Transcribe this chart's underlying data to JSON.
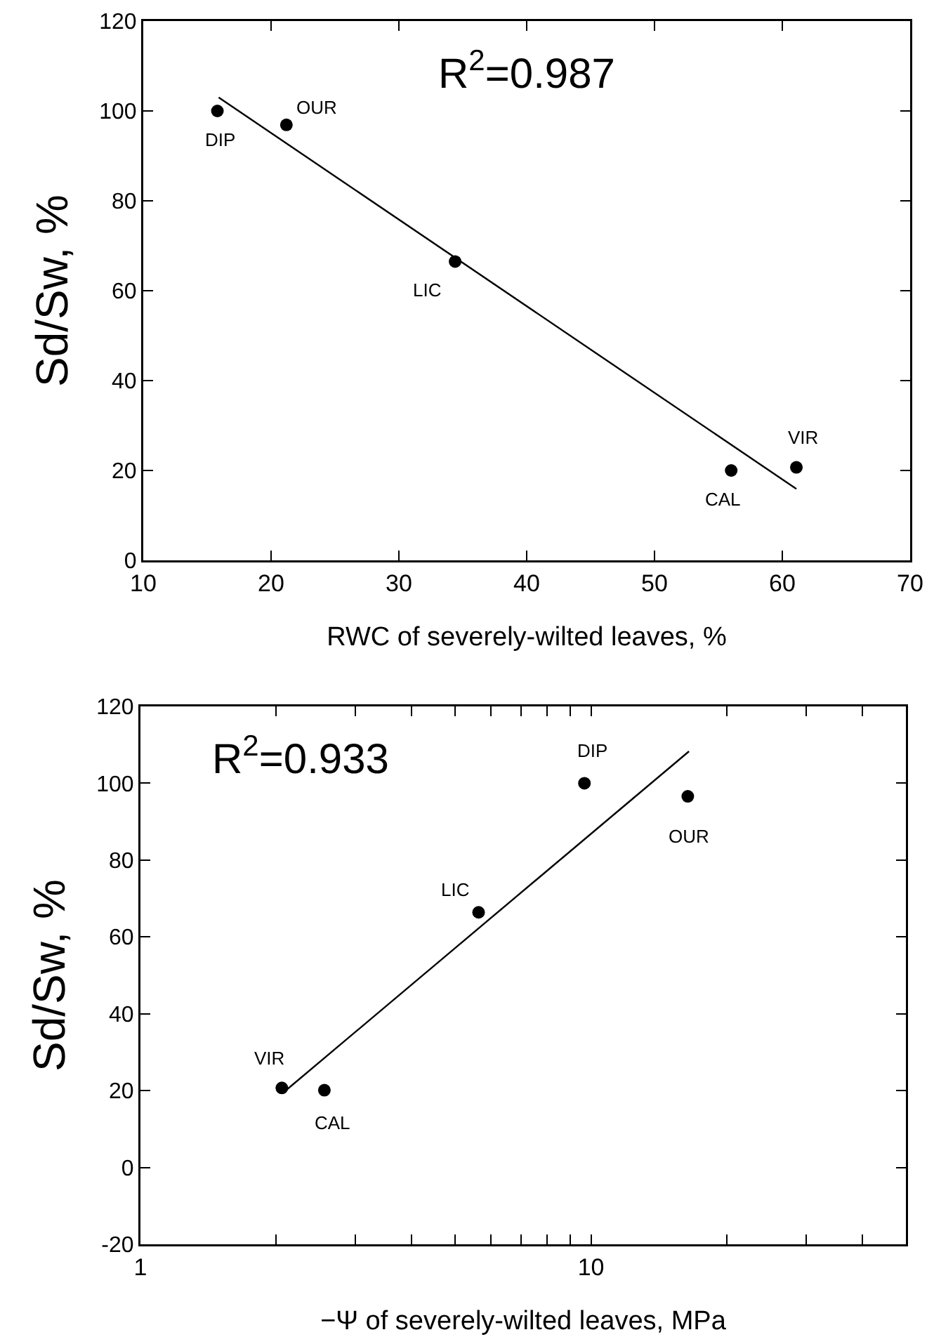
{
  "chart_data": [
    {
      "type": "scatter",
      "xlabel": "RWC of severely-wilted leaves, %",
      "ylabel": "Sd/Sw, %",
      "xlim": [
        10,
        70
      ],
      "xticks": [
        10,
        20,
        30,
        40,
        50,
        60,
        70
      ],
      "ylim": [
        0,
        120
      ],
      "yticks": [
        0,
        20,
        40,
        60,
        80,
        100,
        120
      ],
      "grid": false,
      "series": [
        {
          "color": "#000000",
          "marker": "circle",
          "x": [
            15.8,
            21.2,
            34.4,
            56.0,
            61.1
          ],
          "values": [
            100,
            96.9,
            66.5,
            20.0,
            20.7
          ]
        },
        {
          "type": "line",
          "color": "#000000",
          "marker": "none",
          "line_style": "solid",
          "x": [
            15.9,
            61.1
          ],
          "values": [
            103,
            15.9
          ]
        }
      ],
      "annotations": [
        "R$^{2}$=0.987",
        {
          "text": "DIP",
          "x": 15.8,
          "y": 100
        },
        {
          "text": "OUR",
          "x": 21.2,
          "y": 96.9
        },
        {
          "text": "LIC",
          "x": 34.4,
          "y": 66.5
        },
        {
          "text": "CAL",
          "x": 56.0,
          "y": 20.0
        },
        {
          "text": "VIR",
          "x": 61.1,
          "y": 20.7
        }
      ]
    },
    {
      "type": "scatter",
      "xlabel": "−Ψ of severely-wilted leaves, MPa",
      "ylabel": "Sd/Sw, %",
      "log": "x",
      "xlim": [
        1,
        50
      ],
      "xticks": [
        1,
        {
          "value": 2,
          "label": null
        },
        {
          "value": 3,
          "label": null
        },
        {
          "value": 4,
          "label": null
        },
        {
          "value": 5,
          "label": null
        },
        {
          "value": 6,
          "label": null
        },
        {
          "value": 7,
          "label": null
        },
        {
          "value": 8,
          "label": null
        },
        {
          "value": 9,
          "label": null
        },
        10,
        {
          "value": 20,
          "label": null
        },
        {
          "value": 30,
          "label": null
        },
        {
          "value": 40,
          "label": null
        }
      ],
      "ylim": [
        -20,
        120
      ],
      "yticks": [
        -20,
        0,
        20,
        40,
        60,
        80,
        100,
        120
      ],
      "grid": false,
      "series": [
        {
          "color": "#000000",
          "marker": "circle",
          "x": [
            2.06,
            2.56,
            5.63,
            9.67,
            16.4
          ],
          "values": [
            20.7,
            20.1,
            66.4,
            100,
            96.6
          ]
        },
        {
          "type": "line",
          "color": "#000000",
          "marker": "none",
          "line_style": "solid",
          "x": [
            2.11,
            16.5
          ],
          "values": [
            20.2,
            108.3
          ]
        }
      ],
      "annotations": [
        "R$^{2}$=0.933",
        {
          "text": "VIR",
          "x": 2.06,
          "y": 20.7
        },
        {
          "text": "CAL",
          "x": 2.56,
          "y": 20.1
        },
        {
          "text": "LIC",
          "x": 5.63,
          "y": 66.4
        },
        {
          "text": "DIP",
          "x": 9.67,
          "y": 100
        },
        {
          "text": "OUR",
          "x": 16.4,
          "y": 96.6
        }
      ]
    }
  ]
}
